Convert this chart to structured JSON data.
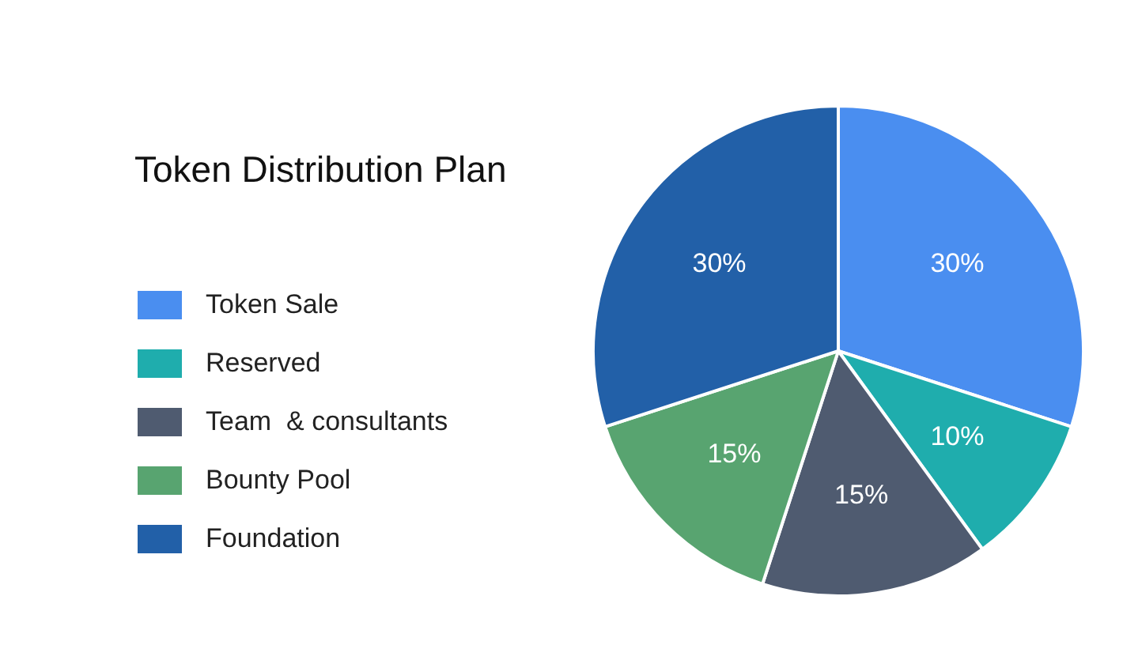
{
  "chart_data": {
    "type": "pie",
    "title": "Token Distribution Plan",
    "categories": [
      "Token Sale",
      "Reserved",
      "Team  & consultants",
      "Bounty Pool",
      "Foundation"
    ],
    "values": [
      30,
      10,
      15,
      15,
      30
    ],
    "value_labels": [
      "30%",
      "10%",
      "15%",
      "15%",
      "30%"
    ],
    "colors": [
      "#4a8ef0",
      "#1fadad",
      "#4f5b70",
      "#58a470",
      "#2260a8"
    ],
    "legend": "left"
  }
}
